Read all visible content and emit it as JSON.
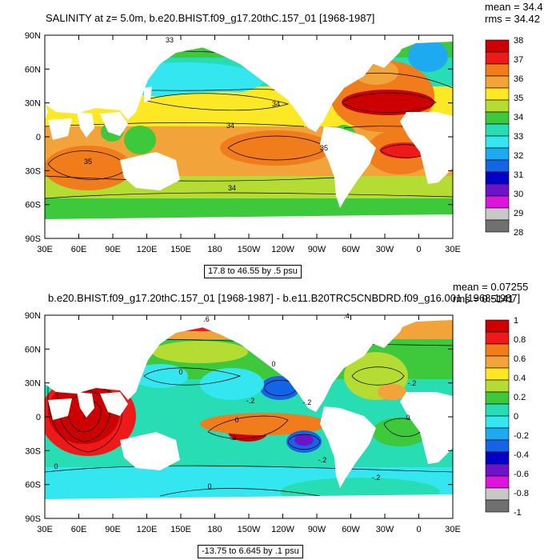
{
  "chart_data": [
    {
      "type": "heatmap",
      "title": "SALINITY at z=   5.0m, b.e20.BHIST.f09_g17.20thC.157_01 [1968-1987]",
      "stats": {
        "mean": "mean = 34.4",
        "rms": "rms = 34.42"
      },
      "x_ticks": [
        "30E",
        "60E",
        "90E",
        "120E",
        "150E",
        "180",
        "150W",
        "120W",
        "90W",
        "60W",
        "30W",
        "0",
        "30E"
      ],
      "y_ticks": [
        "90N",
        "60N",
        "30N",
        "0",
        "30S",
        "60S",
        "90S"
      ],
      "xlim": [
        30,
        390
      ],
      "ylim": [
        -90,
        90
      ],
      "contour_note": "17.8 to 46.55 by .5 psu",
      "contour_labels": [
        "33",
        "34",
        "34",
        "35",
        "35",
        "34"
      ],
      "colorbar": {
        "labels": [
          "38",
          "37",
          "36",
          "35",
          "34",
          "33",
          "32",
          "31",
          "30",
          "29",
          "28"
        ],
        "colors": [
          "#cc0000",
          "#ee1a1a",
          "#f07c1c",
          "#f2a43a",
          "#fde826",
          "#b4dc32",
          "#3ec83c",
          "#28dcb4",
          "#34e6f0",
          "#1eaaf0",
          "#1464e6",
          "#0000c8",
          "#6e14c8",
          "#dc14dc",
          "#c8c8c8",
          "#707070"
        ]
      }
    },
    {
      "type": "heatmap",
      "title": "b.e20.BHIST.f09_g17.20thC.157_01 [1968-1987] - b.e11.B20TRC5CNBDRD.f09_g16.001 [1968-1987]",
      "stats": {
        "mean": "mean = 0.07255",
        "rms": "rms = 0.5141"
      },
      "x_ticks": [
        "30E",
        "60E",
        "90E",
        "120E",
        "150E",
        "180",
        "150W",
        "120W",
        "90W",
        "60W",
        "30W",
        "0",
        "30E"
      ],
      "y_ticks": [
        "90N",
        "60N",
        "30N",
        "0",
        "30S",
        "60S",
        "90S"
      ],
      "xlim": [
        30,
        390
      ],
      "ylim": [
        -90,
        90
      ],
      "contour_note": "-13.75 to 6.645 by .1 psu",
      "contour_labels": [
        ".6",
        ".4",
        "0",
        "0",
        "-.2",
        "-.2",
        "0",
        "0",
        "-.2",
        "-.2",
        "0",
        "-.2",
        "0",
        "-.2"
      ],
      "colorbar": {
        "labels": [
          "1",
          "0.8",
          "0.6",
          "0.4",
          "0.2",
          "0",
          "-0.2",
          "-0.4",
          "-0.6",
          "-0.8",
          "-1"
        ],
        "colors": [
          "#cc0000",
          "#ee1a1a",
          "#f07c1c",
          "#f2a43a",
          "#fde826",
          "#b4dc32",
          "#3ec83c",
          "#28dcb4",
          "#34e6f0",
          "#1eaaf0",
          "#1464e6",
          "#0000c8",
          "#6e14c8",
          "#dc14dc",
          "#c8c8c8",
          "#707070"
        ]
      }
    }
  ]
}
